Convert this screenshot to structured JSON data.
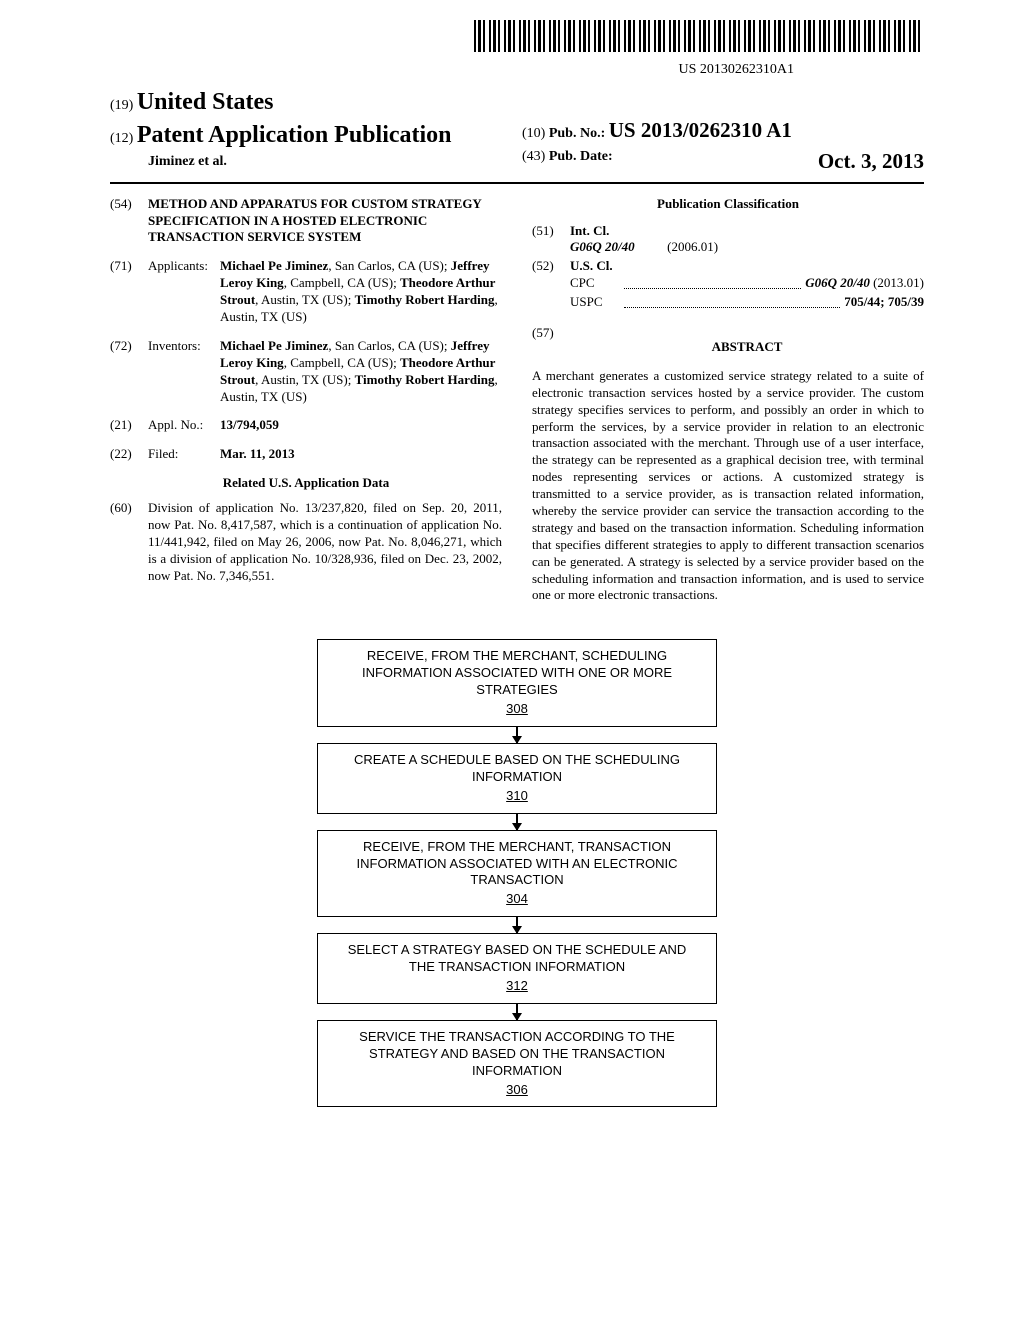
{
  "barcode_number": "US 20130262310A1",
  "header": {
    "line19_prefix": "(19)",
    "country": "United States",
    "line12_prefix": "(12)",
    "doc_type": "Patent Application Publication",
    "authors": "Jiminez et al.",
    "line10_prefix": "(10)",
    "pub_no_label": "Pub. No.:",
    "pub_no": "US 2013/0262310 A1",
    "line43_prefix": "(43)",
    "pub_date_label": "Pub. Date:",
    "pub_date": "Oct. 3, 2013"
  },
  "left_column": {
    "s54": {
      "num": "(54)",
      "title": "METHOD AND APPARATUS FOR CUSTOM STRATEGY SPECIFICATION IN A HOSTED ELECTRONIC TRANSACTION SERVICE SYSTEM"
    },
    "s71": {
      "num": "(71)",
      "label": "Applicants:",
      "body_html": "<b>Michael Pe Jiminez</b>, San Carlos, CA (US); <b>Jeffrey Leroy King</b>, Campbell, CA (US); <b>Theodore Arthur Strout</b>, Austin, TX (US); <b>Timothy Robert Harding</b>, Austin, TX (US)"
    },
    "s72": {
      "num": "(72)",
      "label": "Inventors:",
      "body_html": "<b>Michael Pe Jiminez</b>, San Carlos, CA (US); <b>Jeffrey Leroy King</b>, Campbell, CA (US); <b>Theodore Arthur Strout</b>, Austin, TX (US); <b>Timothy Robert Harding</b>, Austin, TX (US)"
    },
    "s21": {
      "num": "(21)",
      "label": "Appl. No.:",
      "value": "13/794,059"
    },
    "s22": {
      "num": "(22)",
      "label": "Filed:",
      "value": "Mar. 11, 2013"
    },
    "related_header": "Related U.S. Application Data",
    "s60": {
      "num": "(60)",
      "body": "Division of application No. 13/237,820, filed on Sep. 20, 2011, now Pat. No. 8,417,587, which is a continuation of application No. 11/441,942, filed on May 26, 2006, now Pat. No. 8,046,271, which is a division of application No. 10/328,936, filed on Dec. 23, 2002, now Pat. No. 7,346,551."
    }
  },
  "right_column": {
    "pub_class_header": "Publication Classification",
    "s51": {
      "num": "(51)",
      "label": "Int. Cl.",
      "code": "G06Q 20/40",
      "year": "(2006.01)"
    },
    "s52": {
      "num": "(52)",
      "label": "U.S. Cl.",
      "cpc_label": "CPC",
      "cpc_value": "G06Q 20/40",
      "cpc_year": "(2013.01)",
      "uspc_label": "USPC",
      "uspc_value": "705/44; 705/39"
    },
    "s57": {
      "num": "(57)",
      "header": "ABSTRACT"
    },
    "abstract": "A merchant generates a customized service strategy related to a suite of electronic transaction services hosted by a service provider. The custom strategy specifies services to perform, and possibly an order in which to perform the services, by a service provider in relation to an electronic transaction associated with the merchant. Through use of a user interface, the strategy can be represented as a graphical decision tree, with terminal nodes representing services or actions. A customized strategy is transmitted to a service provider, as is transaction related information, whereby the service provider can service the transaction according to the strategy and based on the transaction information. Scheduling information that specifies different strategies to apply to different transaction scenarios can be generated. A strategy is selected by a service provider based on the scheduling information and transaction information, and is used to service one or more electronic transactions."
  },
  "flowchart": {
    "nodes": [
      {
        "text": "RECEIVE, FROM THE MERCHANT, SCHEDULING INFORMATION ASSOCIATED WITH ONE OR MORE STRATEGIES",
        "num": "308"
      },
      {
        "text": "CREATE A SCHEDULE BASED ON THE SCHEDULING INFORMATION",
        "num": "310"
      },
      {
        "text": "RECEIVE, FROM THE MERCHANT, TRANSACTION INFORMATION ASSOCIATED WITH AN ELECTRONIC TRANSACTION",
        "num": "304"
      },
      {
        "text": "SELECT A STRATEGY BASED ON THE SCHEDULE AND THE TRANSACTION INFORMATION",
        "num": "312"
      },
      {
        "text": "SERVICE THE TRANSACTION ACCORDING TO THE STRATEGY AND BASED ON THE TRANSACTION INFORMATION",
        "num": "306"
      }
    ]
  }
}
